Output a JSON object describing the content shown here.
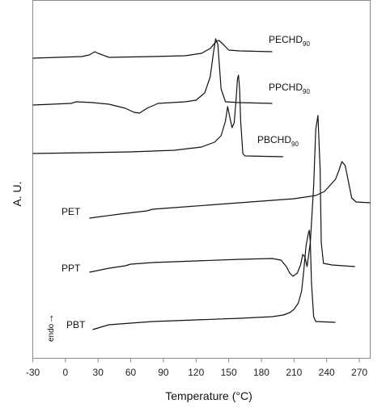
{
  "chart_data": {
    "type": "line",
    "xlabel": "Temperature (°C)",
    "ylabel": "A. U.",
    "xlim": [
      -30,
      280
    ],
    "x_ticks": [
      -30,
      0,
      30,
      60,
      90,
      120,
      150,
      180,
      210,
      240,
      270
    ],
    "grid": false,
    "endo_label": "endo",
    "endo_arrow": "→",
    "series": [
      {
        "name": "PECHD",
        "name_sub": "90",
        "points": [
          [
            -30,
            72
          ],
          [
            15,
            70
          ],
          [
            22,
            68
          ],
          [
            27,
            64
          ],
          [
            30,
            66
          ],
          [
            40,
            71
          ],
          [
            80,
            70
          ],
          [
            110,
            69
          ],
          [
            125,
            66
          ],
          [
            133,
            60
          ],
          [
            138,
            52
          ],
          [
            141,
            50
          ],
          [
            145,
            55
          ],
          [
            150,
            62
          ],
          [
            160,
            63
          ],
          [
            190,
            64
          ]
        ]
      },
      {
        "name": "PPCHD",
        "name_sub": "90",
        "points": [
          [
            -30,
            130
          ],
          [
            5,
            128
          ],
          [
            10,
            126
          ],
          [
            25,
            127
          ],
          [
            40,
            129
          ],
          [
            55,
            134
          ],
          [
            63,
            139
          ],
          [
            68,
            140
          ],
          [
            75,
            134
          ],
          [
            85,
            128
          ],
          [
            110,
            126
          ],
          [
            120,
            124
          ],
          [
            128,
            115
          ],
          [
            133,
            95
          ],
          [
            136,
            65
          ],
          [
            138,
            48
          ],
          [
            140,
            55
          ],
          [
            143,
            110
          ],
          [
            147,
            126
          ],
          [
            160,
            127
          ],
          [
            190,
            128
          ]
        ]
      },
      {
        "name": "PBCHD",
        "name_sub": "90",
        "points": [
          [
            -30,
            190
          ],
          [
            20,
            189
          ],
          [
            60,
            188
          ],
          [
            100,
            186
          ],
          [
            125,
            182
          ],
          [
            137,
            176
          ],
          [
            143,
            168
          ],
          [
            147,
            150
          ],
          [
            149,
            132
          ],
          [
            151,
            145
          ],
          [
            153,
            158
          ],
          [
            155,
            152
          ],
          [
            157,
            120
          ],
          [
            158,
            98
          ],
          [
            159,
            93
          ],
          [
            160,
            110
          ],
          [
            161,
            150
          ],
          [
            163,
            190
          ],
          [
            165,
            193
          ],
          [
            200,
            194
          ]
        ]
      },
      {
        "name": "PET",
        "points": [
          [
            22,
            270
          ],
          [
            50,
            265
          ],
          [
            75,
            261
          ],
          [
            80,
            259
          ],
          [
            100,
            257
          ],
          [
            150,
            252
          ],
          [
            190,
            248
          ],
          [
            210,
            246
          ],
          [
            230,
            242
          ],
          [
            238,
            237
          ],
          [
            244,
            228
          ],
          [
            248,
            222
          ],
          [
            251,
            212
          ],
          [
            254,
            200
          ],
          [
            257,
            205
          ],
          [
            260,
            225
          ],
          [
            263,
            245
          ],
          [
            267,
            250
          ],
          [
            280,
            251
          ]
        ]
      },
      {
        "name": "PPT",
        "points": [
          [
            22,
            337
          ],
          [
            40,
            332
          ],
          [
            55,
            329
          ],
          [
            60,
            327
          ],
          [
            80,
            325
          ],
          [
            120,
            323
          ],
          [
            160,
            321
          ],
          [
            190,
            320
          ],
          [
            198,
            322
          ],
          [
            203,
            330
          ],
          [
            206,
            338
          ],
          [
            209,
            342
          ],
          [
            213,
            338
          ],
          [
            216,
            328
          ],
          [
            218,
            315
          ],
          [
            220,
            318
          ],
          [
            222,
            330
          ],
          [
            225,
            300
          ],
          [
            228,
            230
          ],
          [
            230,
            160
          ],
          [
            232,
            143
          ],
          [
            234,
            210
          ],
          [
            235,
            300
          ],
          [
            237,
            326
          ],
          [
            245,
            328
          ],
          [
            266,
            330
          ]
        ]
      },
      {
        "name": "PBT",
        "points": [
          [
            25,
            408
          ],
          [
            35,
            404
          ],
          [
            40,
            402
          ],
          [
            80,
            398
          ],
          [
            120,
            396
          ],
          [
            160,
            394
          ],
          [
            190,
            392
          ],
          [
            200,
            390
          ],
          [
            206,
            387
          ],
          [
            210,
            383
          ],
          [
            214,
            375
          ],
          [
            217,
            360
          ],
          [
            219,
            335
          ],
          [
            221,
            305
          ],
          [
            223,
            290
          ],
          [
            224,
            285
          ],
          [
            225,
            300
          ],
          [
            226,
            350
          ],
          [
            228,
            392
          ],
          [
            230,
            398
          ],
          [
            248,
            399
          ]
        ]
      }
    ]
  }
}
